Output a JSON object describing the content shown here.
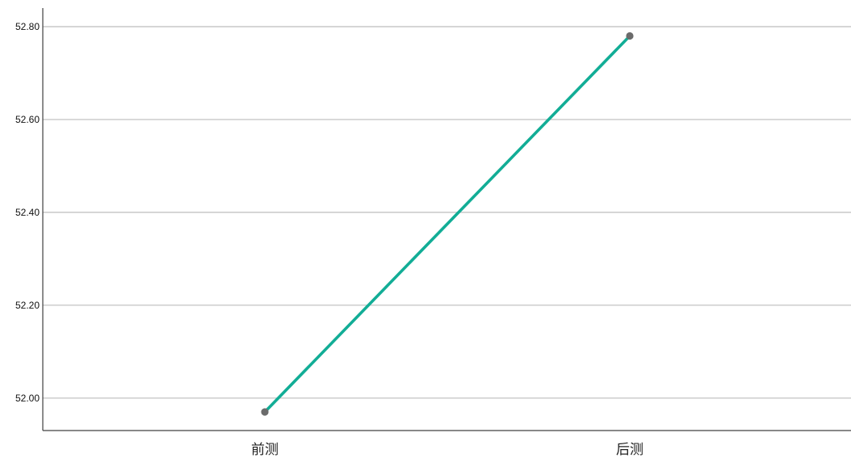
{
  "chart_data": {
    "type": "line",
    "categories": [
      "前测",
      "后测"
    ],
    "series": [
      {
        "values": [
          51.97,
          52.78
        ],
        "color": "#12ad96",
        "marker_color": "#6b6b6b"
      }
    ],
    "ylim": [
      51.93,
      52.84
    ],
    "y_ticks": [
      "52.00",
      "52.20",
      "52.40",
      "52.60",
      "52.80"
    ],
    "y_tick_values": [
      52.0,
      52.2,
      52.4,
      52.6,
      52.8
    ],
    "grid": true,
    "title": "",
    "xlabel": "",
    "ylabel": ""
  }
}
